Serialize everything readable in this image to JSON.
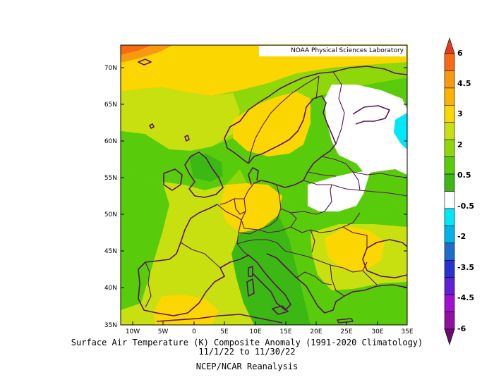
{
  "credit": "NOAA Physical Sciences Laboratory",
  "title_line1": "Surface Air Temperature (K) Composite Anomaly (1991-2020 Climatology)",
  "title_line2": "11/1/22  to 11/30/22",
  "title_line3": "NCEP/NCAR Reanalysis",
  "lat_labels": [
    "70N",
    "65N",
    "60N",
    "55N",
    "50N",
    "45N",
    "40N",
    "35N"
  ],
  "lon_labels": [
    "10W",
    "5W",
    "0",
    "5E",
    "10E",
    "15E",
    "20E",
    "25E",
    "30E",
    "35E"
  ],
  "colorbar": {
    "labels": [
      "6",
      "4.5",
      "3",
      "2",
      "0.5",
      "-0.5",
      "-2",
      "-3.5",
      "-4.5",
      "-6"
    ],
    "colors_top_to_bottom": [
      "#e63a1a",
      "#f86a12",
      "#f89a10",
      "#fcb200",
      "#fcd600",
      "#c8e010",
      "#8ed80a",
      "#58cc0a",
      "#3cb814",
      "#ffffff",
      "#00e8f8",
      "#00b4e8",
      "#1e6ccc",
      "#2832d2",
      "#6020d8",
      "#a010d0",
      "#9010a0",
      "#6c0a72"
    ]
  },
  "palette": {
    "coastline": "#5a1450",
    "field_base": "#8ed80a"
  }
}
